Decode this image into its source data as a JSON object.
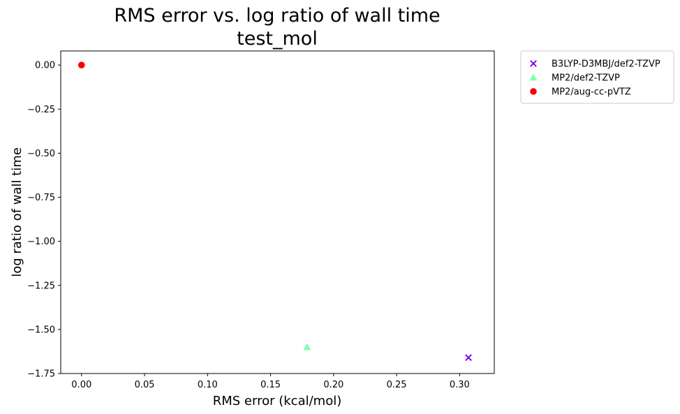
{
  "chart_data": {
    "type": "scatter",
    "title": "RMS error vs. log ratio of wall time",
    "subtitle": "test_mol",
    "xlabel": "RMS error (kcal/mol)",
    "ylabel": "log ratio of wall time",
    "xlim": [
      -0.0165,
      0.3275
    ],
    "ylim": [
      -1.75,
      0.08
    ],
    "xticks": [
      0.0,
      0.05,
      0.1,
      0.15,
      0.2,
      0.25,
      0.3
    ],
    "xtick_labels": [
      "0.00",
      "0.05",
      "0.10",
      "0.15",
      "0.20",
      "0.25",
      "0.30"
    ],
    "yticks": [
      0.0,
      -0.25,
      -0.5,
      -0.75,
      -1.0,
      -1.25,
      -1.5,
      -1.75
    ],
    "ytick_labels": [
      "0.00",
      "−0.25",
      "−0.50",
      "−0.75",
      "−1.00",
      "−1.25",
      "−1.50",
      "−1.75"
    ],
    "grid": false,
    "legend_position": "outside-top-right",
    "series": [
      {
        "name": "B3LYP-D3MBJ/def2-TZVP",
        "marker": "x",
        "color": "#8000ff",
        "x": [
          0.307
        ],
        "y": [
          -1.66
        ]
      },
      {
        "name": "MP2/def2-TZVP",
        "marker": "triangle",
        "color": "#80ffb4",
        "x": [
          0.179
        ],
        "y": [
          -1.6
        ]
      },
      {
        "name": "MP2/aug-cc-pVTZ",
        "marker": "circle",
        "color": "#ff0000",
        "x": [
          0.0
        ],
        "y": [
          0.0
        ]
      }
    ]
  }
}
